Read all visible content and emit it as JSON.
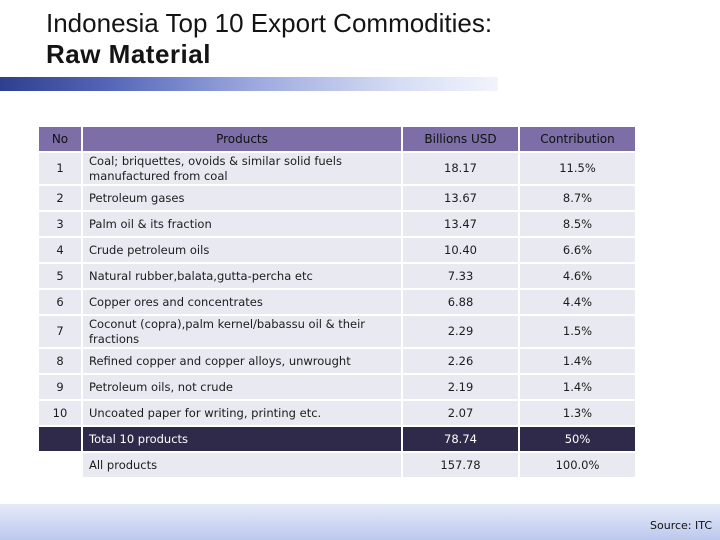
{
  "title": {
    "line1": "Indonesia Top 10 Export Commodities:",
    "line2": "Raw Material"
  },
  "table": {
    "headers": [
      "No",
      "Products",
      "Billions USD",
      "Contribution"
    ],
    "rows": [
      {
        "no": "1",
        "product": "Coal; briquettes, ovoids & similar solid fuels manufactured from coal",
        "usd": "18.17",
        "contribution": "11.5%"
      },
      {
        "no": "2",
        "product": "Petroleum gases",
        "usd": "13.67",
        "contribution": "8.7%"
      },
      {
        "no": "3",
        "product": "Palm oil & its fraction",
        "usd": "13.47",
        "contribution": "8.5%"
      },
      {
        "no": "4",
        "product": "Crude petroleum oils",
        "usd": "10.40",
        "contribution": "6.6%"
      },
      {
        "no": "5",
        "product": "Natural rubber,balata,gutta-percha etc",
        "usd": "7.33",
        "contribution": "4.6%"
      },
      {
        "no": "6",
        "product": "Copper ores and concentrates",
        "usd": "6.88",
        "contribution": "4.4%"
      },
      {
        "no": "7",
        "product": "Coconut (copra),palm kernel/babassu oil & their fractions",
        "usd": "2.29",
        "contribution": "1.5%"
      },
      {
        "no": "8",
        "product": "Refined copper and copper alloys, unwrought",
        "usd": "2.26",
        "contribution": "1.4%"
      },
      {
        "no": "9",
        "product": "Petroleum oils, not crude",
        "usd": "2.19",
        "contribution": "1.4%"
      },
      {
        "no": "10",
        "product": "Uncoated paper for writing, printing etc.",
        "usd": "2.07",
        "contribution": "1.3%"
      }
    ],
    "total": {
      "label": "Total 10 products",
      "usd": "78.74",
      "contribution": "50%"
    },
    "all": {
      "label": "All products",
      "usd": "157.78",
      "contribution": "100.0%"
    }
  },
  "source": "Source: ITC",
  "colors": {
    "header_bg": "#7d6ea8",
    "row_bg": "#e9e9f2",
    "total_bg": "#2f2a4a",
    "title_bar_start": "#2e3f8f"
  }
}
